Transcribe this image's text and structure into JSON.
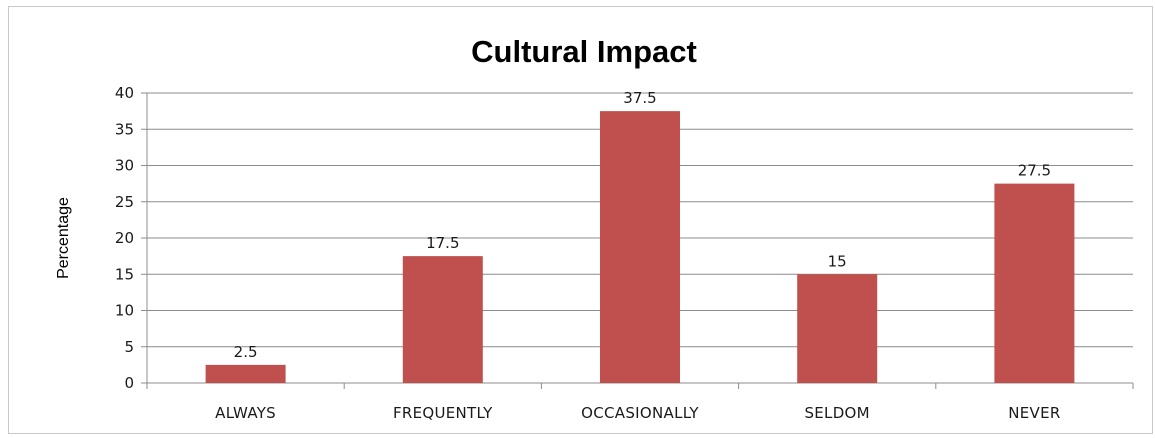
{
  "chart_data": {
    "type": "bar",
    "title": "Cultural Impact",
    "xlabel": "",
    "ylabel": "Percentage",
    "categories": [
      "ALWAYS",
      "FREQUENTLY",
      "OCCASIONALLY",
      "SELDOM",
      "NEVER"
    ],
    "values": [
      2.5,
      17.5,
      37.5,
      15,
      27.5
    ],
    "value_labels": [
      "2.5",
      "17.5",
      "37.5",
      "15",
      "27.5"
    ],
    "ylim": [
      0,
      40
    ],
    "yticks": [
      "0",
      "5",
      "10",
      "15",
      "20",
      "25",
      "30",
      "35",
      "40"
    ],
    "grid": true,
    "legend": "none",
    "bar_color": "#c0504d"
  }
}
